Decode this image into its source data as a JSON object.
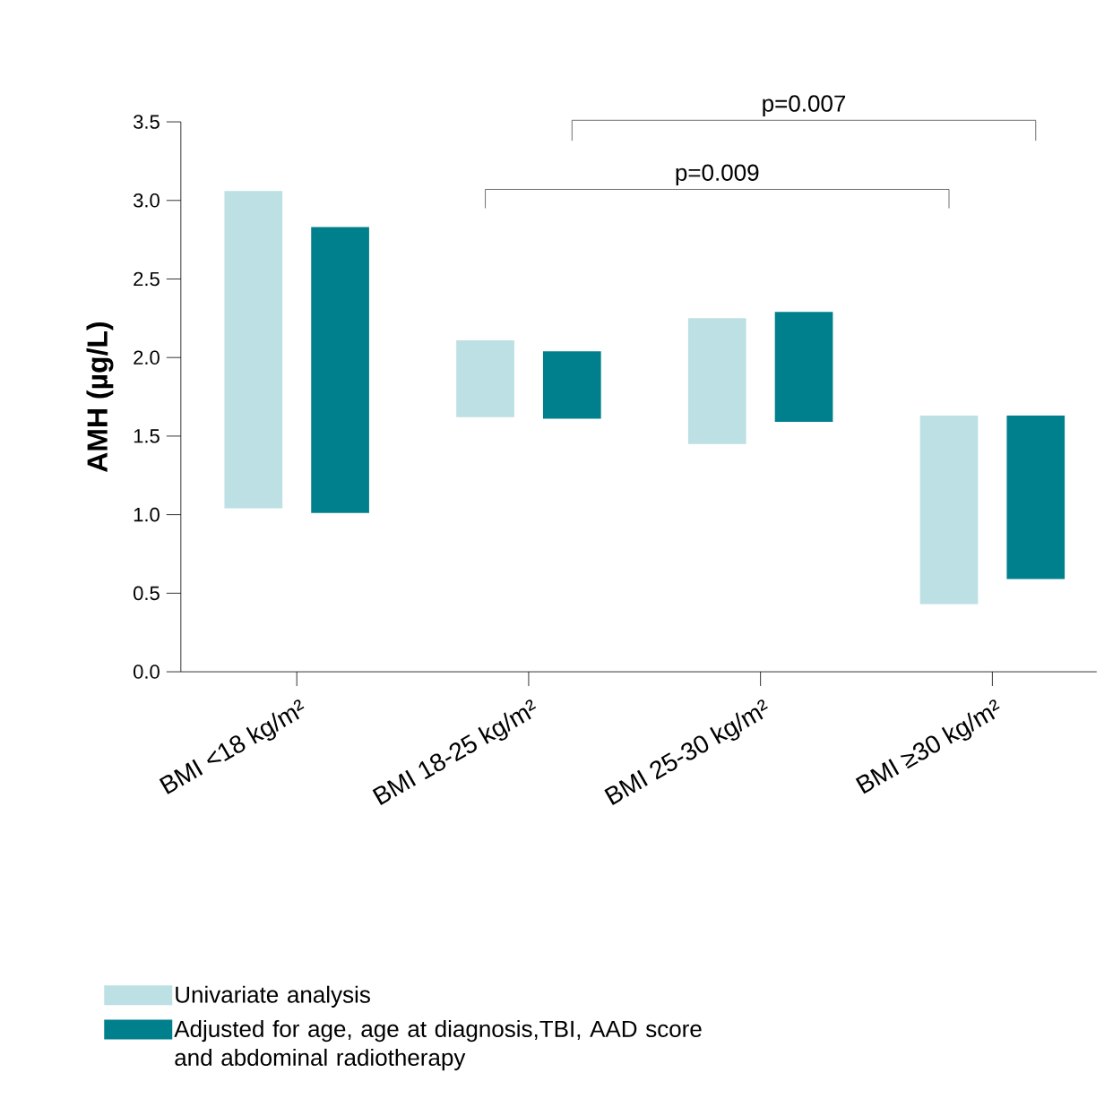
{
  "chart_data": {
    "type": "bar",
    "ylabel": "AMH (µg/L)",
    "categories": [
      "BMI <18 kg/m²",
      "BMI 18-25 kg/m²",
      "BMI 25-30 kg/m²",
      "BMI ≥30 kg/m²"
    ],
    "series": [
      {
        "name": "Univariate analysis",
        "color": "#bce0e3",
        "base": [
          1.04,
          1.62,
          1.45,
          0.43
        ],
        "values": [
          2.02,
          0.49,
          0.8,
          1.2
        ]
      },
      {
        "name": "Adjusted for age, age at diagnosis,TBI, AAD score and abdominal radiotherapy",
        "color": "#00808c",
        "base": [
          1.01,
          1.61,
          1.59,
          0.59
        ],
        "values": [
          1.82,
          0.43,
          0.7,
          1.04
        ]
      }
    ],
    "ylim": [
      0,
      3.5
    ],
    "yticks": [
      {
        "value": 0,
        "label": "0.0"
      },
      {
        "value": 0.5,
        "label": "0.5"
      },
      {
        "value": 1,
        "label": "1.0"
      },
      {
        "value": 1.5,
        "label": "1.5"
      },
      {
        "value": 2,
        "label": "2.0"
      },
      {
        "value": 2.5,
        "label": "2.5"
      },
      {
        "value": 3,
        "label": "3.0"
      },
      {
        "value": 3.5,
        "label": "3.5"
      }
    ],
    "annotations": [
      "p=0.009",
      "p=0.007"
    ],
    "legend": "bottom",
    "grid": false
  }
}
